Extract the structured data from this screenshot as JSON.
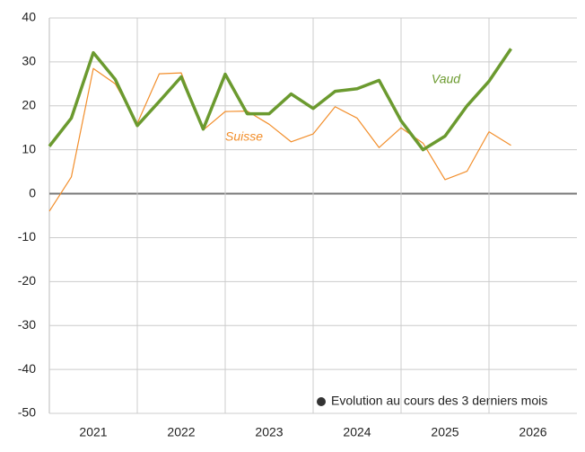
{
  "chart_data": {
    "type": "line",
    "x": [
      2021,
      2021.25,
      2021.5,
      2021.75,
      2022,
      2022.25,
      2022.5,
      2022.75,
      2023,
      2023.25,
      2023.5,
      2023.75,
      2024,
      2024.25,
      2024.5,
      2024.75,
      2025,
      2025.25,
      2025.5,
      2025.75,
      2026,
      2026.25
    ],
    "series": [
      {
        "name": "Suisse",
        "color": "#f28e2b",
        "width": 1.2,
        "values": [
          -4,
          3.8,
          28.5,
          25,
          16,
          27.3,
          27.5,
          14.5,
          18.7,
          18.8,
          15.8,
          11.8,
          13.6,
          19.8,
          17.2,
          10.5,
          15,
          11.5,
          3.2,
          5.1,
          14.1,
          11
        ]
      },
      {
        "name": "Vaud",
        "color": "#6b9a2f",
        "width": 3.5,
        "values": [
          10.8,
          17.2,
          32.1,
          26,
          15.5,
          21,
          26.6,
          14.7,
          27.2,
          18.2,
          18.2,
          22.7,
          19.4,
          23.3,
          23.9,
          25.8,
          16.6,
          10,
          13.1,
          20,
          25.6,
          33
        ]
      }
    ],
    "year_labels": [
      2021,
      2022,
      2023,
      2024,
      2025,
      2026
    ],
    "xlim": [
      2021,
      2027
    ],
    "xticks": [
      2022,
      2023,
      2024,
      2025,
      2026
    ],
    "ylim": [
      -50,
      40
    ],
    "yticks": [
      -50,
      -40,
      -30,
      -20,
      -10,
      0,
      10,
      20,
      30,
      40
    ],
    "grid": true,
    "legend_note": "Evolution au cours des 3 derniers mois"
  }
}
